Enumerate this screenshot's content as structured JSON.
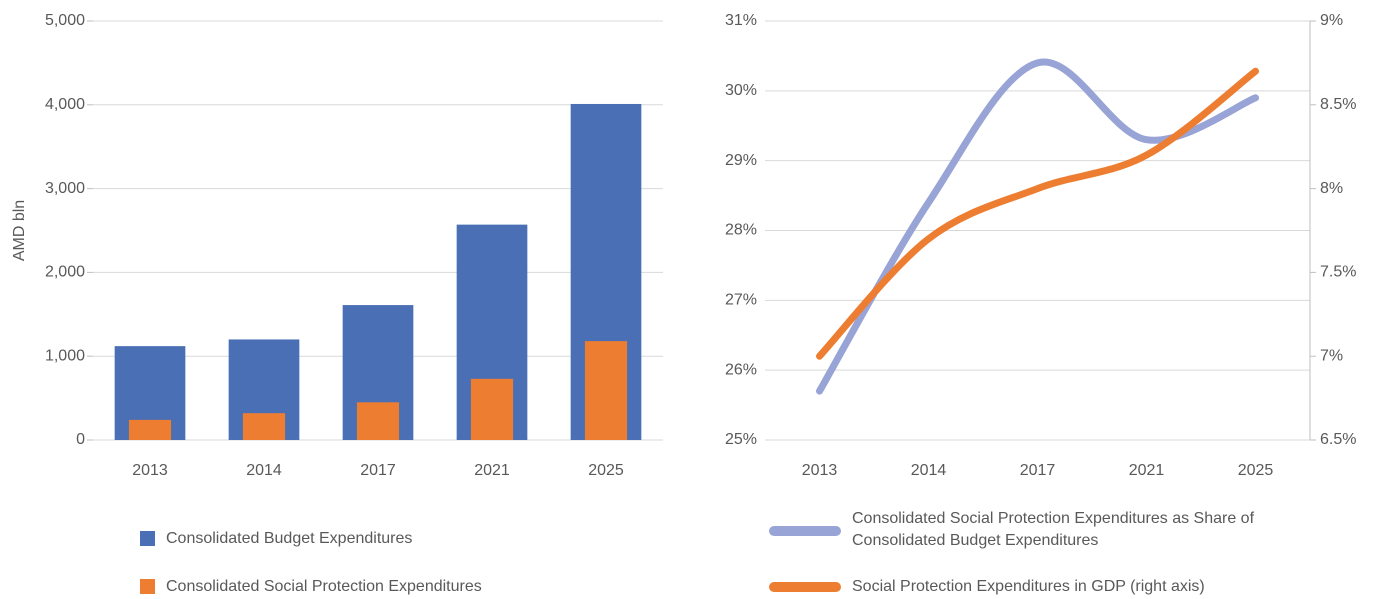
{
  "chart_data": [
    {
      "type": "bar",
      "ylabel": "AMD bln",
      "categories": [
        "2013",
        "2014",
        "2017",
        "2021",
        "2025"
      ],
      "series": [
        {
          "name": "Consolidated Budget Expenditures",
          "color": "#4a6fb5",
          "values": [
            1120,
            1200,
            1610,
            2570,
            4010
          ]
        },
        {
          "name": "Consolidated Social Protection Expenditures",
          "color": "#ed7d31",
          "values": [
            240,
            320,
            450,
            730,
            1180
          ]
        }
      ],
      "ylim": [
        0,
        5000
      ],
      "yticks": [
        0,
        {
          "value": 1000,
          "label": "1,000"
        },
        {
          "value": 2000,
          "label": "2,000"
        },
        {
          "value": 3000,
          "label": "3,000"
        },
        {
          "value": 4000,
          "label": "4,000"
        },
        {
          "value": 5000,
          "label": "5,000"
        }
      ],
      "grid": true
    },
    {
      "type": "line",
      "categories": [
        "2013",
        "2014",
        "2017",
        "2021",
        "2025"
      ],
      "series": [
        {
          "name": "Consolidated Social Protection Expenditures as Share of Consolidated  Budget Expenditures",
          "color": "#98a4d6",
          "values": [
            25.7,
            28.4,
            30.4,
            29.3,
            29.9
          ]
        },
        {
          "name": "Social Protection Expenditures in GDP (right axis)",
          "color": "#ed7d31",
          "axis": "y2",
          "values": [
            7.0,
            7.7,
            8.0,
            8.2,
            8.7
          ]
        }
      ],
      "ylim": [
        25,
        31
      ],
      "yticks": [
        {
          "value": 25,
          "label": "25%"
        },
        {
          "value": 26,
          "label": "26%"
        },
        {
          "value": 27,
          "label": "27%"
        },
        {
          "value": 28,
          "label": "28%"
        },
        {
          "value": 29,
          "label": "29%"
        },
        {
          "value": 30,
          "label": "30%"
        },
        {
          "value": 31,
          "label": "31%"
        }
      ],
      "y2lim": [
        6.5,
        9
      ],
      "y2ticks": [
        {
          "value": 6.5,
          "label": "6.5%"
        },
        {
          "value": 7,
          "label": "7%"
        },
        {
          "value": 7.5,
          "label": "7.5%"
        },
        {
          "value": 8,
          "label": "8%"
        },
        {
          "value": 8.5,
          "label": "8.5%"
        },
        {
          "value": 9,
          "label": "9%"
        }
      ],
      "grid": true
    }
  ]
}
